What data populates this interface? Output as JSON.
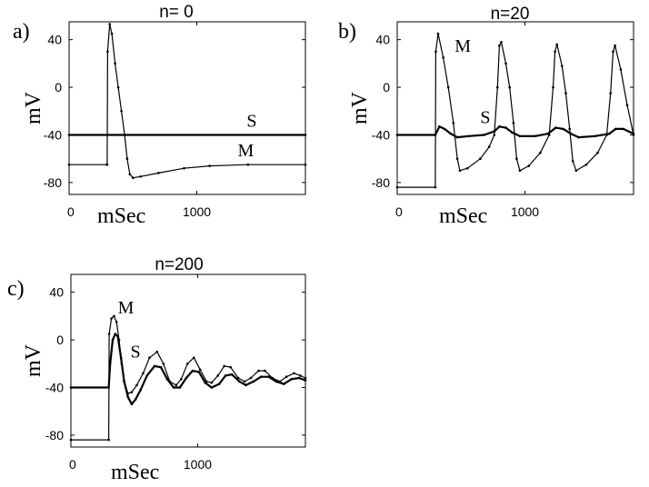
{
  "chart_data": [
    {
      "type": "line",
      "panel_label": "a)",
      "title": "n= 0",
      "xlabel": "mSec",
      "ylabel": "mV",
      "xlim": [
        0,
        1850
      ],
      "ylim": [
        -90,
        55
      ],
      "x_ticks": [
        0,
        1000
      ],
      "y_ticks": [
        40,
        0,
        -40,
        -80
      ],
      "series": [
        {
          "name": "S",
          "points": [
            [
              0,
              -40
            ],
            [
              1850,
              -40
            ]
          ]
        },
        {
          "name": "M",
          "points": [
            [
              0,
              -65
            ],
            [
              295,
              -65
            ],
            [
              298,
              -65
            ],
            [
              302,
              30
            ],
            [
              318,
              53
            ],
            [
              335,
              45
            ],
            [
              360,
              20
            ],
            [
              385,
              0
            ],
            [
              410,
              -20
            ],
            [
              435,
              -40
            ],
            [
              455,
              -60
            ],
            [
              475,
              -73
            ],
            [
              500,
              -76
            ],
            [
              560,
              -75
            ],
            [
              700,
              -72
            ],
            [
              900,
              -68
            ],
            [
              1100,
              -66
            ],
            [
              1400,
              -65
            ],
            [
              1850,
              -65
            ]
          ]
        }
      ],
      "annotations": [
        {
          "text": "S",
          "x": 1390,
          "y": -33
        },
        {
          "text": "M",
          "x": 1320,
          "y": -58
        }
      ]
    },
    {
      "type": "line",
      "panel_label": "b)",
      "title": "n=20",
      "xlabel": "mSec",
      "ylabel": "mV",
      "xlim": [
        0,
        1850
      ],
      "ylim": [
        -90,
        55
      ],
      "x_ticks": [
        0,
        1000
      ],
      "y_ticks": [
        40,
        0,
        -40,
        -80
      ],
      "series": [
        {
          "name": "M",
          "points": [
            [
              0,
              -84
            ],
            [
              298,
              -84
            ],
            [
              302,
              30
            ],
            [
              320,
              45
            ],
            [
              360,
              25
            ],
            [
              400,
              0
            ],
            [
              440,
              -30
            ],
            [
              470,
              -60
            ],
            [
              490,
              -70
            ],
            [
              550,
              -68
            ],
            [
              650,
              -60
            ],
            [
              720,
              -50
            ],
            [
              760,
              -40
            ],
            [
              785,
              0
            ],
            [
              800,
              35
            ],
            [
              815,
              38
            ],
            [
              850,
              20
            ],
            [
              880,
              0
            ],
            [
              910,
              -30
            ],
            [
              935,
              -60
            ],
            [
              960,
              -70
            ],
            [
              1030,
              -66
            ],
            [
              1120,
              -55
            ],
            [
              1190,
              -40
            ],
            [
              1220,
              0
            ],
            [
              1235,
              30
            ],
            [
              1250,
              36
            ],
            [
              1290,
              18
            ],
            [
              1320,
              -5
            ],
            [
              1350,
              -35
            ],
            [
              1375,
              -62
            ],
            [
              1400,
              -70
            ],
            [
              1480,
              -65
            ],
            [
              1570,
              -55
            ],
            [
              1640,
              -40
            ],
            [
              1670,
              -5
            ],
            [
              1690,
              30
            ],
            [
              1705,
              35
            ],
            [
              1750,
              15
            ],
            [
              1800,
              -15
            ],
            [
              1850,
              -40
            ]
          ]
        },
        {
          "name": "S",
          "points": [
            [
              0,
              -40
            ],
            [
              298,
              -40
            ],
            [
              330,
              -33
            ],
            [
              370,
              -35
            ],
            [
              420,
              -39
            ],
            [
              470,
              -42
            ],
            [
              560,
              -41
            ],
            [
              680,
              -40
            ],
            [
              760,
              -37
            ],
            [
              800,
              -33
            ],
            [
              850,
              -34
            ],
            [
              900,
              -38
            ],
            [
              960,
              -41
            ],
            [
              1080,
              -41
            ],
            [
              1180,
              -39
            ],
            [
              1240,
              -34
            ],
            [
              1300,
              -35
            ],
            [
              1360,
              -39
            ],
            [
              1420,
              -42
            ],
            [
              1550,
              -41
            ],
            [
              1660,
              -39
            ],
            [
              1710,
              -35
            ],
            [
              1770,
              -35
            ],
            [
              1850,
              -39
            ]
          ]
        }
      ],
      "annotations": [
        {
          "text": "M",
          "x": 450,
          "y": 30
        },
        {
          "text": "S",
          "x": 650,
          "y": -30
        }
      ]
    },
    {
      "type": "line",
      "panel_label": "c)",
      "title": "n=200",
      "xlabel": "mSec",
      "ylabel": "mV",
      "xlim": [
        0,
        1850
      ],
      "ylim": [
        -90,
        55
      ],
      "x_ticks": [
        0,
        1000
      ],
      "y_ticks": [
        40,
        0,
        -40,
        -80
      ],
      "series": [
        {
          "name": "M",
          "points": [
            [
              0,
              -84
            ],
            [
              298,
              -84
            ],
            [
              302,
              5
            ],
            [
              320,
              18
            ],
            [
              340,
              20
            ],
            [
              360,
              15
            ],
            [
              380,
              0
            ],
            [
              400,
              -20
            ],
            [
              420,
              -35
            ],
            [
              450,
              -45
            ],
            [
              480,
              -44
            ],
            [
              520,
              -38
            ],
            [
              570,
              -28
            ],
            [
              620,
              -15
            ],
            [
              680,
              -10
            ],
            [
              730,
              -20
            ],
            [
              780,
              -35
            ],
            [
              830,
              -38
            ],
            [
              870,
              -33
            ],
            [
              920,
              -20
            ],
            [
              970,
              -15
            ],
            [
              1020,
              -25
            ],
            [
              1070,
              -35
            ],
            [
              1110,
              -36
            ],
            [
              1160,
              -30
            ],
            [
              1210,
              -22
            ],
            [
              1260,
              -23
            ],
            [
              1320,
              -32
            ],
            [
              1370,
              -35
            ],
            [
              1420,
              -32
            ],
            [
              1480,
              -26
            ],
            [
              1530,
              -26
            ],
            [
              1590,
              -32
            ],
            [
              1650,
              -35
            ],
            [
              1700,
              -31
            ],
            [
              1760,
              -28
            ],
            [
              1810,
              -30
            ],
            [
              1850,
              -32
            ]
          ]
        },
        {
          "name": "S",
          "points": [
            [
              0,
              -40
            ],
            [
              298,
              -40
            ],
            [
              310,
              -20
            ],
            [
              330,
              0
            ],
            [
              350,
              5
            ],
            [
              370,
              3
            ],
            [
              395,
              -15
            ],
            [
              420,
              -35
            ],
            [
              450,
              -48
            ],
            [
              480,
              -54
            ],
            [
              510,
              -50
            ],
            [
              550,
              -42
            ],
            [
              600,
              -30
            ],
            [
              660,
              -22
            ],
            [
              710,
              -23
            ],
            [
              760,
              -33
            ],
            [
              810,
              -40
            ],
            [
              860,
              -40
            ],
            [
              910,
              -32
            ],
            [
              960,
              -26
            ],
            [
              1010,
              -27
            ],
            [
              1060,
              -36
            ],
            [
              1110,
              -40
            ],
            [
              1170,
              -37
            ],
            [
              1220,
              -30
            ],
            [
              1270,
              -29
            ],
            [
              1330,
              -35
            ],
            [
              1380,
              -38
            ],
            [
              1440,
              -35
            ],
            [
              1500,
              -31
            ],
            [
              1560,
              -31
            ],
            [
              1620,
              -35
            ],
            [
              1680,
              -37
            ],
            [
              1740,
              -33
            ],
            [
              1800,
              -32
            ],
            [
              1850,
              -34
            ]
          ]
        }
      ],
      "annotations": [
        {
          "text": "M",
          "x": 370,
          "y": 22
        },
        {
          "text": "S",
          "x": 470,
          "y": -15
        }
      ]
    }
  ]
}
